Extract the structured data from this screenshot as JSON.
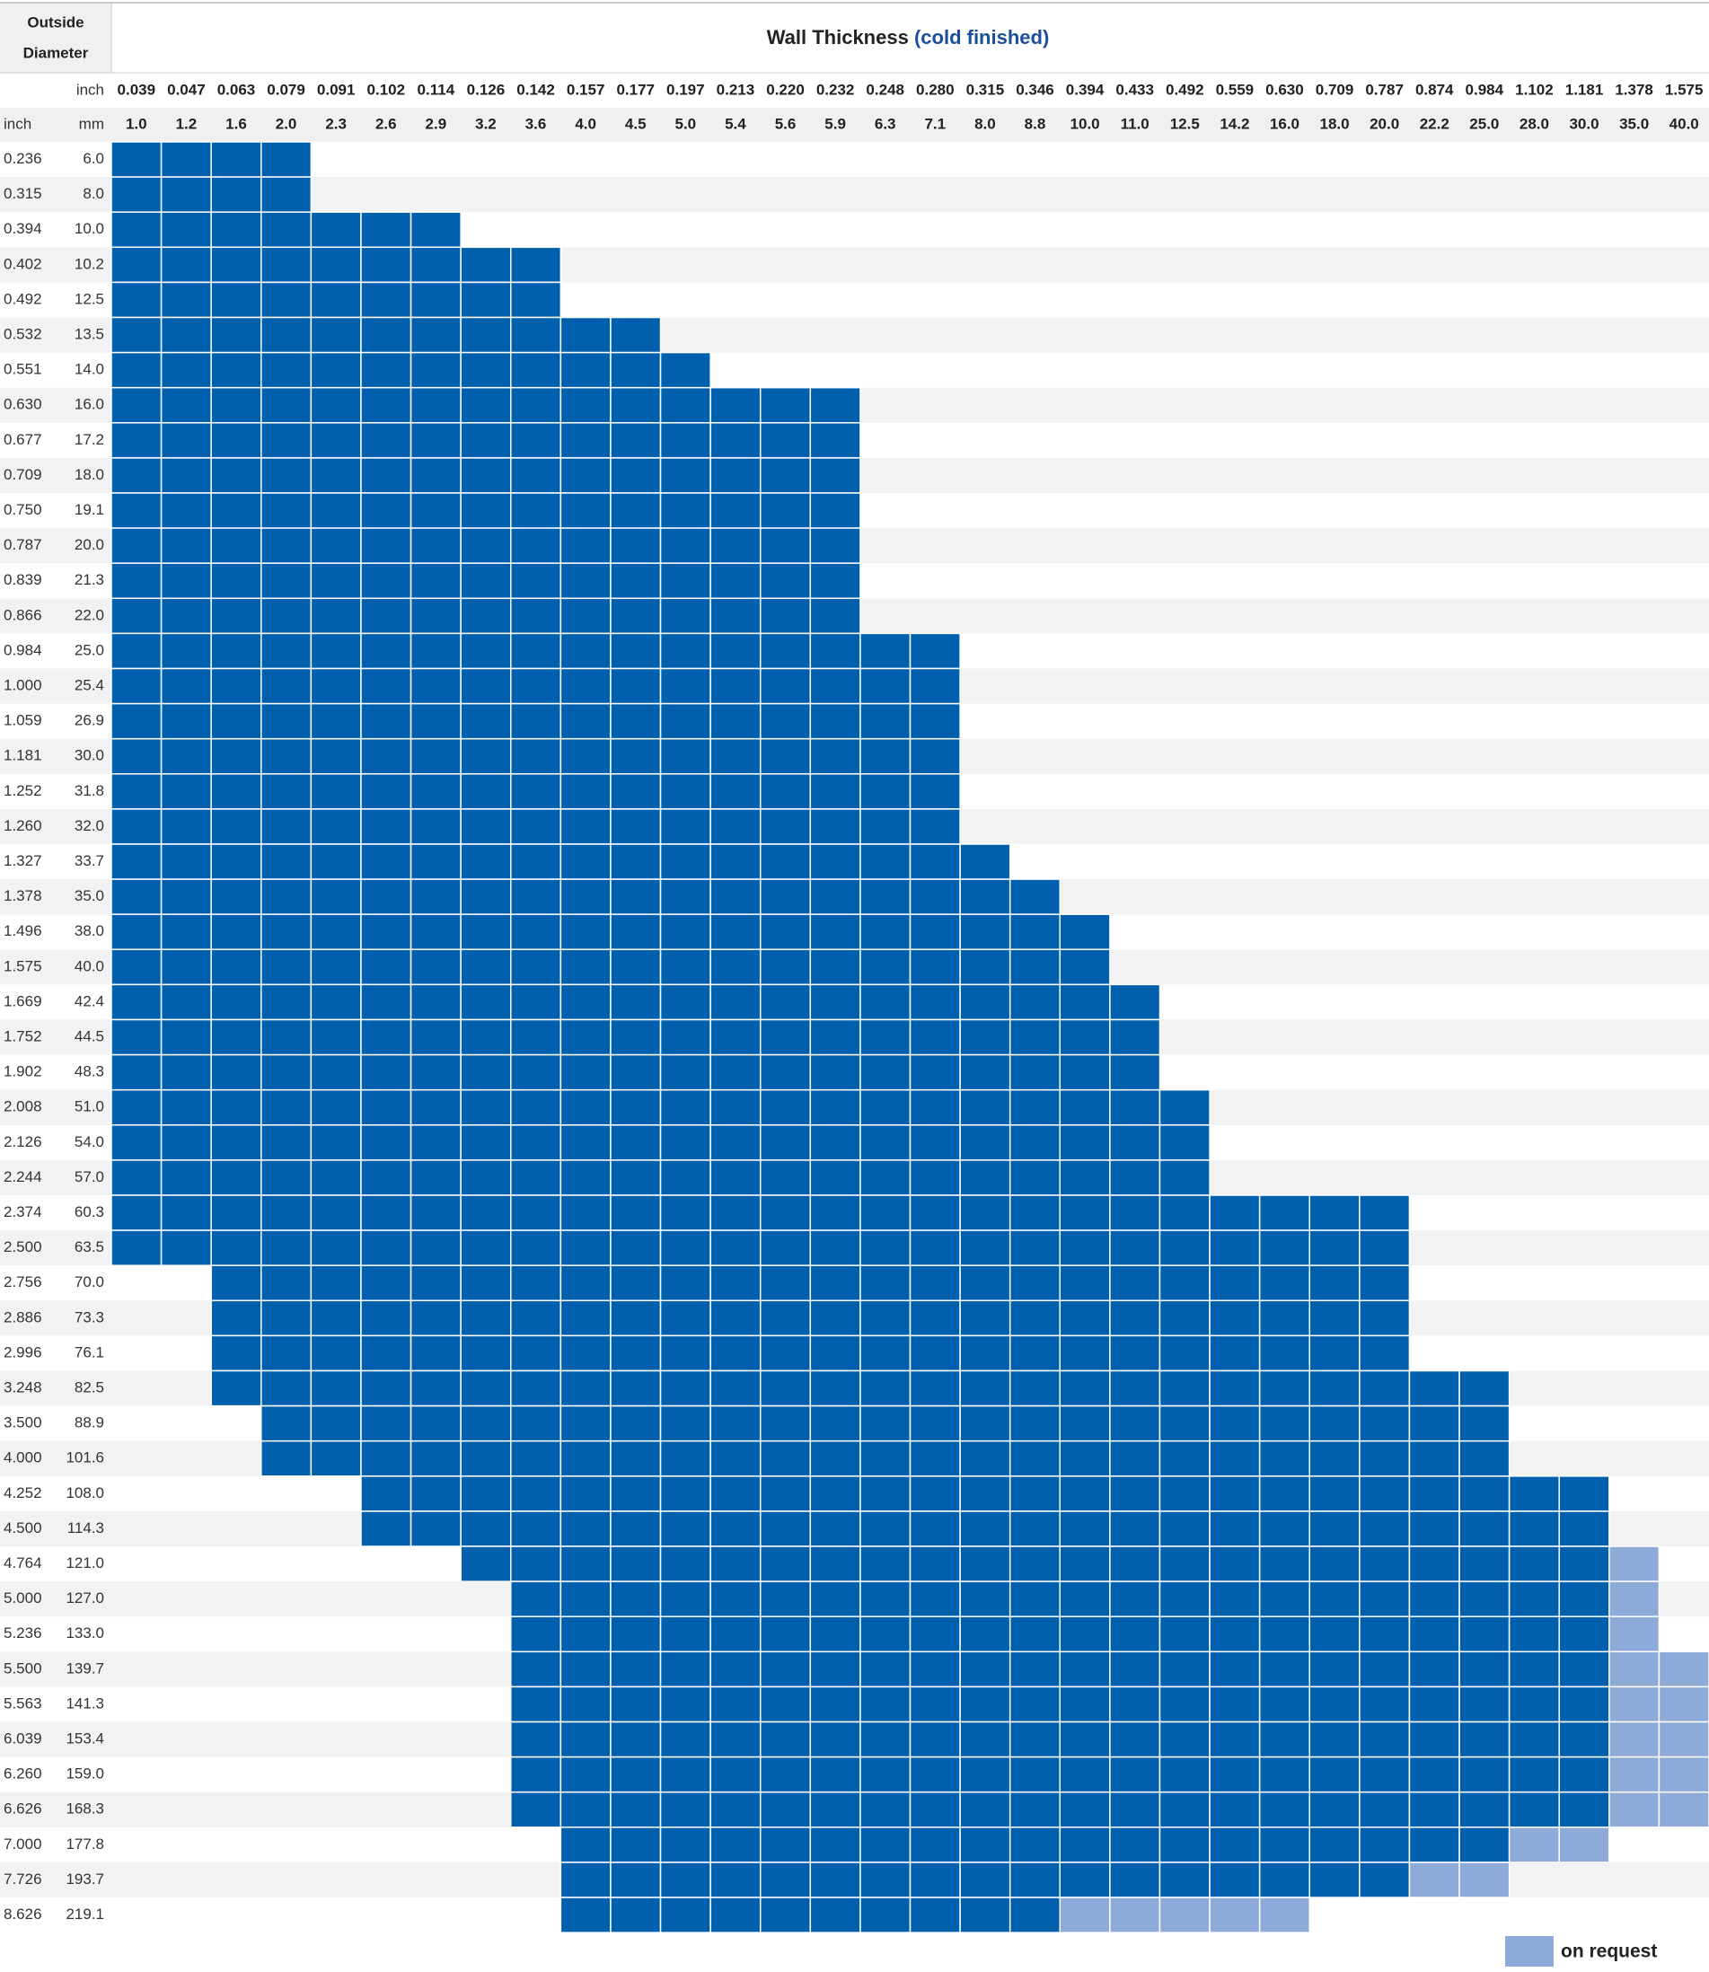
{
  "header": {
    "corner": [
      "Outside",
      "Diameter"
    ],
    "title": "Wall Thickness",
    "subtitle": "(cold finished)",
    "unit_inch": "inch",
    "unit_mm": "mm"
  },
  "columns": {
    "inch": [
      "0.039",
      "0.047",
      "0.063",
      "0.079",
      "0.091",
      "0.102",
      "0.114",
      "0.126",
      "0.142",
      "0.157",
      "0.177",
      "0.197",
      "0.213",
      "0.220",
      "0.232",
      "0.248",
      "0.280",
      "0.315",
      "0.346",
      "0.394",
      "0.433",
      "0.492",
      "0.559",
      "0.630",
      "0.709",
      "0.787",
      "0.874",
      "0.984",
      "1.102",
      "1.181",
      "1.378",
      "1.575"
    ],
    "mm": [
      "1.0",
      "1.2",
      "1.6",
      "2.0",
      "2.3",
      "2.6",
      "2.9",
      "3.2",
      "3.6",
      "4.0",
      "4.5",
      "5.0",
      "5.4",
      "5.6",
      "5.9",
      "6.3",
      "7.1",
      "8.0",
      "8.8",
      "10.0",
      "11.0",
      "12.5",
      "14.2",
      "16.0",
      "18.0",
      "20.0",
      "22.2",
      "25.0",
      "28.0",
      "30.0",
      "35.0",
      "40.0"
    ]
  },
  "rows": [
    {
      "inch": "0.236",
      "mm": "6.0",
      "available": [
        "1.0",
        "2.0"
      ]
    },
    {
      "inch": "0.315",
      "mm": "8.0",
      "available": [
        "1.0",
        "2.0"
      ]
    },
    {
      "inch": "0.394",
      "mm": "10.0",
      "available": [
        "1.0",
        "2.9"
      ]
    },
    {
      "inch": "0.402",
      "mm": "10.2",
      "available": [
        "1.0",
        "3.6"
      ]
    },
    {
      "inch": "0.492",
      "mm": "12.5",
      "available": [
        "1.0",
        "3.6"
      ]
    },
    {
      "inch": "0.532",
      "mm": "13.5",
      "available": [
        "1.0",
        "4.5"
      ]
    },
    {
      "inch": "0.551",
      "mm": "14.0",
      "available": [
        "1.0",
        "5.0"
      ]
    },
    {
      "inch": "0.630",
      "mm": "16.0",
      "available": [
        "1.0",
        "5.9"
      ]
    },
    {
      "inch": "0.677",
      "mm": "17.2",
      "available": [
        "1.0",
        "5.9"
      ]
    },
    {
      "inch": "0.709",
      "mm": "18.0",
      "available": [
        "1.0",
        "5.9"
      ]
    },
    {
      "inch": "0.750",
      "mm": "19.1",
      "available": [
        "1.0",
        "5.9"
      ]
    },
    {
      "inch": "0.787",
      "mm": "20.0",
      "available": [
        "1.0",
        "5.9"
      ]
    },
    {
      "inch": "0.839",
      "mm": "21.3",
      "available": [
        "1.0",
        "5.9"
      ]
    },
    {
      "inch": "0.866",
      "mm": "22.0",
      "available": [
        "1.0",
        "5.9"
      ]
    },
    {
      "inch": "0.984",
      "mm": "25.0",
      "available": [
        "1.0",
        "7.1"
      ]
    },
    {
      "inch": "1.000",
      "mm": "25.4",
      "available": [
        "1.0",
        "7.1"
      ]
    },
    {
      "inch": "1.059",
      "mm": "26.9",
      "available": [
        "1.0",
        "7.1"
      ]
    },
    {
      "inch": "1.181",
      "mm": "30.0",
      "available": [
        "1.0",
        "7.1"
      ]
    },
    {
      "inch": "1.252",
      "mm": "31.8",
      "available": [
        "1.0",
        "7.1"
      ]
    },
    {
      "inch": "1.260",
      "mm": "32.0",
      "available": [
        "1.0",
        "7.1"
      ]
    },
    {
      "inch": "1.327",
      "mm": "33.7",
      "available": [
        "1.0",
        "8.0"
      ]
    },
    {
      "inch": "1.378",
      "mm": "35.0",
      "available": [
        "1.0",
        "8.8"
      ]
    },
    {
      "inch": "1.496",
      "mm": "38.0",
      "available": [
        "1.0",
        "10.0"
      ]
    },
    {
      "inch": "1.575",
      "mm": "40.0",
      "available": [
        "1.0",
        "10.0"
      ]
    },
    {
      "inch": "1.669",
      "mm": "42.4",
      "available": [
        "1.0",
        "11.0"
      ]
    },
    {
      "inch": "1.752",
      "mm": "44.5",
      "available": [
        "1.0",
        "11.0"
      ]
    },
    {
      "inch": "1.902",
      "mm": "48.3",
      "available": [
        "1.0",
        "11.0"
      ]
    },
    {
      "inch": "2.008",
      "mm": "51.0",
      "available": [
        "1.0",
        "12.5"
      ]
    },
    {
      "inch": "2.126",
      "mm": "54.0",
      "available": [
        "1.0",
        "12.5"
      ]
    },
    {
      "inch": "2.244",
      "mm": "57.0",
      "available": [
        "1.0",
        "12.5"
      ]
    },
    {
      "inch": "2.374",
      "mm": "60.3",
      "available": [
        "1.0",
        "20.0"
      ]
    },
    {
      "inch": "2.500",
      "mm": "63.5",
      "available": [
        "1.0",
        "20.0"
      ]
    },
    {
      "inch": "2.756",
      "mm": "70.0",
      "available": [
        "1.6",
        "20.0"
      ]
    },
    {
      "inch": "2.886",
      "mm": "73.3",
      "available": [
        "1.6",
        "20.0"
      ]
    },
    {
      "inch": "2.996",
      "mm": "76.1",
      "available": [
        "1.6",
        "20.0"
      ]
    },
    {
      "inch": "3.248",
      "mm": "82.5",
      "available": [
        "1.6",
        "25.0"
      ]
    },
    {
      "inch": "3.500",
      "mm": "88.9",
      "available": [
        "2.0",
        "25.0"
      ]
    },
    {
      "inch": "4.000",
      "mm": "101.6",
      "available": [
        "2.0",
        "25.0"
      ]
    },
    {
      "inch": "4.252",
      "mm": "108.0",
      "available": [
        "2.6",
        "30.0"
      ]
    },
    {
      "inch": "4.500",
      "mm": "114.3",
      "available": [
        "2.6",
        "30.0"
      ]
    },
    {
      "inch": "4.764",
      "mm": "121.0",
      "available": [
        "3.2",
        "30.0"
      ],
      "on_request": [
        "35.0",
        "35.0"
      ]
    },
    {
      "inch": "5.000",
      "mm": "127.0",
      "available": [
        "3.6",
        "30.0"
      ],
      "on_request": [
        "35.0",
        "35.0"
      ]
    },
    {
      "inch": "5.236",
      "mm": "133.0",
      "available": [
        "3.6",
        "30.0"
      ],
      "on_request": [
        "35.0",
        "35.0"
      ]
    },
    {
      "inch": "5.500",
      "mm": "139.7",
      "available": [
        "3.6",
        "30.0"
      ],
      "on_request": [
        "35.0",
        "40.0"
      ]
    },
    {
      "inch": "5.563",
      "mm": "141.3",
      "available": [
        "3.6",
        "30.0"
      ],
      "on_request": [
        "35.0",
        "40.0"
      ]
    },
    {
      "inch": "6.039",
      "mm": "153.4",
      "available": [
        "3.6",
        "30.0"
      ],
      "on_request": [
        "35.0",
        "40.0"
      ]
    },
    {
      "inch": "6.260",
      "mm": "159.0",
      "available": [
        "3.6",
        "30.0"
      ],
      "on_request": [
        "35.0",
        "40.0"
      ]
    },
    {
      "inch": "6.626",
      "mm": "168.3",
      "available": [
        "3.6",
        "30.0"
      ],
      "on_request": [
        "35.0",
        "40.0"
      ]
    },
    {
      "inch": "7.000",
      "mm": "177.8",
      "available": [
        "4.0",
        "25.0"
      ],
      "on_request": [
        "28.0",
        "30.0"
      ]
    },
    {
      "inch": "7.726",
      "mm": "193.7",
      "available": [
        "4.0",
        "20.0"
      ],
      "on_request": [
        "22.2",
        "25.0"
      ]
    },
    {
      "inch": "8.626",
      "mm": "219.1",
      "available": [
        "4.0",
        "8.8"
      ],
      "on_request": [
        "10.0",
        "16.0"
      ]
    }
  ],
  "legend": {
    "on_request": "on request"
  }
}
